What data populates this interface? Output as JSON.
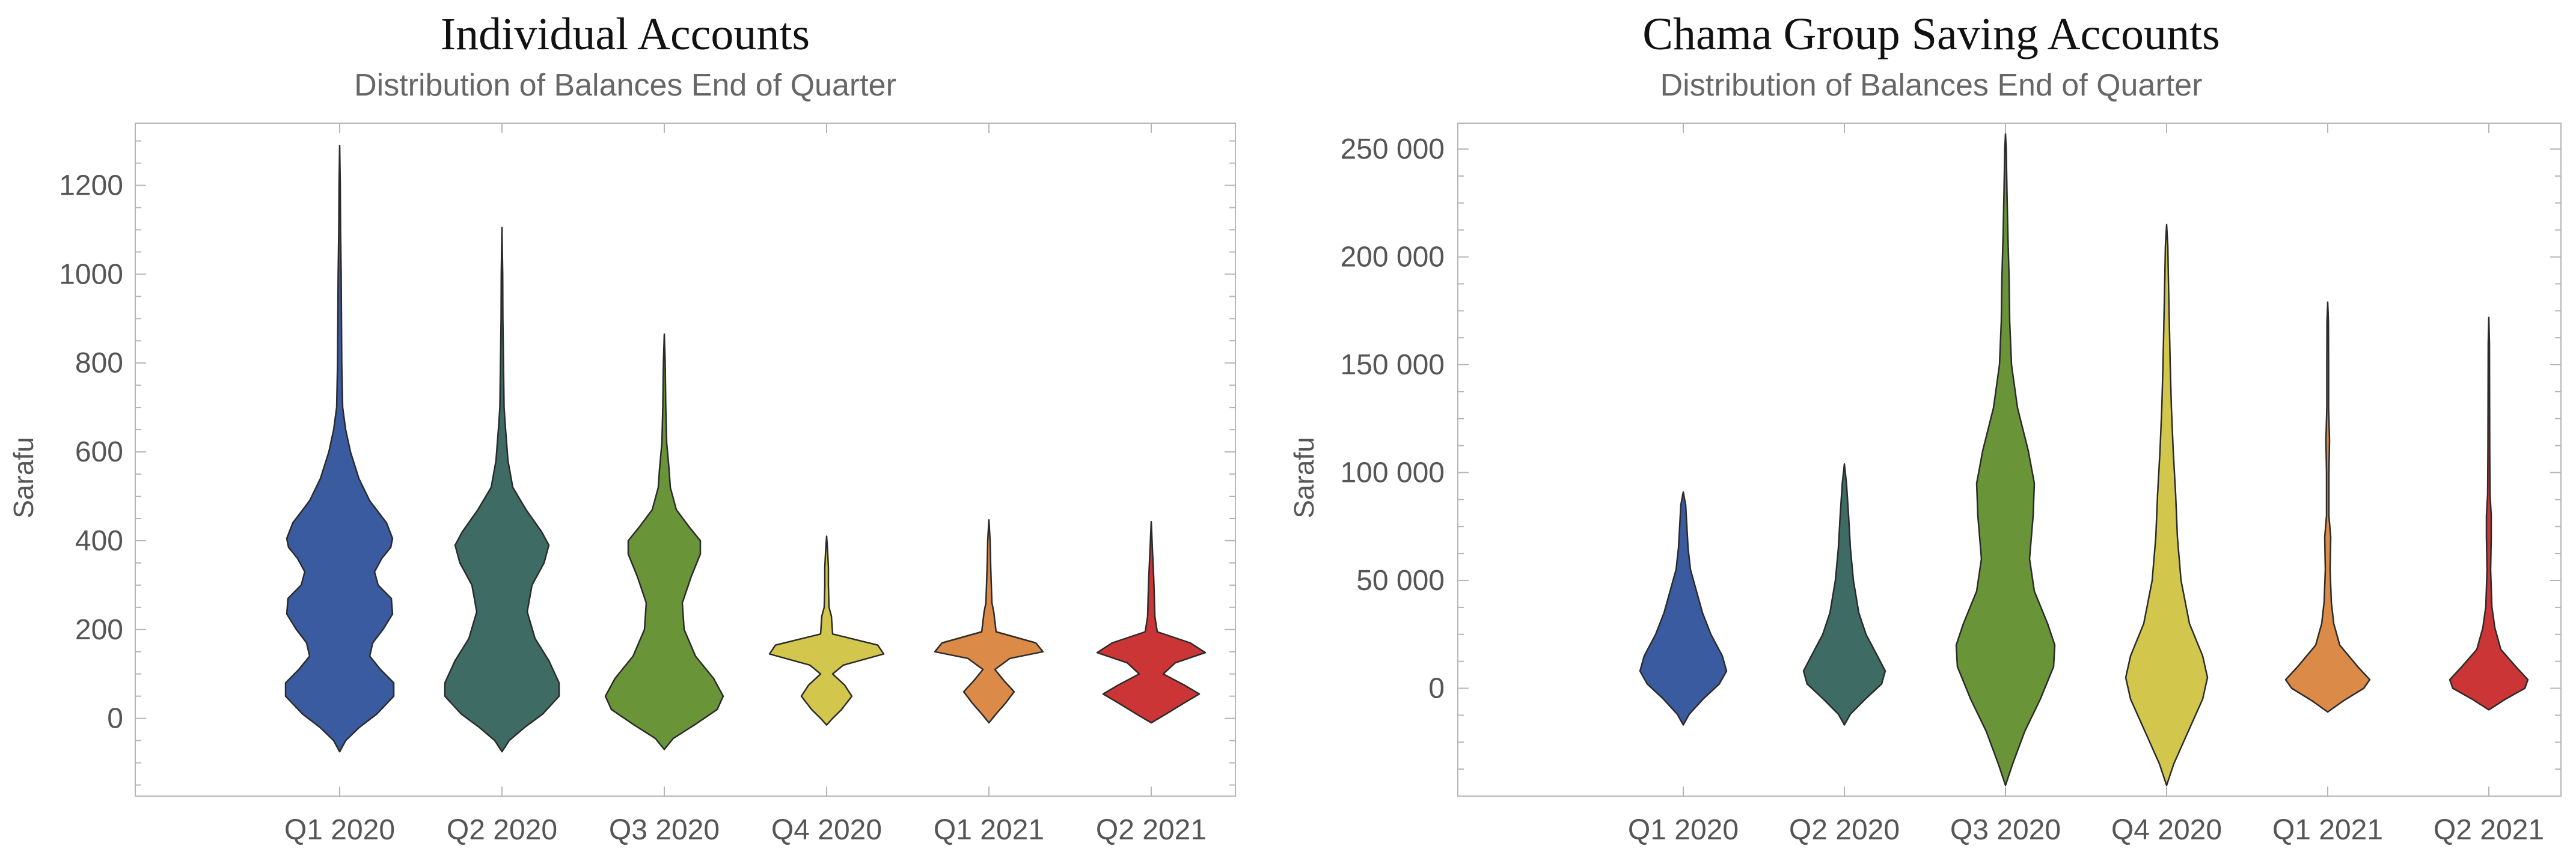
{
  "chart_data": [
    {
      "type": "violin",
      "heading": "Individual Accounts",
      "title": "Distribution of Balances End of Quarter",
      "xlabel": "",
      "ylabel": "Sarafu",
      "ylim": [
        -175,
        1340
      ],
      "yticks": [
        0,
        200,
        400,
        600,
        800,
        1000,
        1200
      ],
      "ytick_labels": [
        "0",
        "200",
        "400",
        "600",
        "800",
        "1000",
        "1200"
      ],
      "grid": false,
      "categories": [
        "Q1 2020",
        "Q2 2020",
        "Q3 2020",
        "Q4 2020",
        "Q1 2021",
        "Q2 2021"
      ],
      "colors": [
        "#3b5ba0",
        "#3e6b64",
        "#6a9438",
        "#d2c64c",
        "#db8a48",
        "#cc3535"
      ],
      "series": [
        {
          "name": "Q1 2020",
          "profile": [
            [
              -75,
              0
            ],
            [
              -50,
              0.1
            ],
            [
              -20,
              0.33
            ],
            [
              10,
              0.62
            ],
            [
              50,
              0.9
            ],
            [
              80,
              0.9
            ],
            [
              110,
              0.68
            ],
            [
              140,
              0.5
            ],
            [
              170,
              0.55
            ],
            [
              200,
              0.72
            ],
            [
              235,
              0.88
            ],
            [
              270,
              0.86
            ],
            [
              300,
              0.64
            ],
            [
              330,
              0.58
            ],
            [
              360,
              0.7
            ],
            [
              385,
              0.85
            ],
            [
              405,
              0.88
            ],
            [
              440,
              0.78
            ],
            [
              490,
              0.5
            ],
            [
              540,
              0.32
            ],
            [
              600,
              0.18
            ],
            [
              650,
              0.1
            ],
            [
              700,
              0.05
            ],
            [
              800,
              0.035
            ],
            [
              1000,
              0.025
            ],
            [
              1100,
              0.015
            ],
            [
              1200,
              0.01
            ],
            [
              1290,
              0
            ]
          ]
        },
        {
          "name": "Q2 2020",
          "profile": [
            [
              -75,
              0
            ],
            [
              -50,
              0.12
            ],
            [
              -20,
              0.38
            ],
            [
              10,
              0.68
            ],
            [
              50,
              0.95
            ],
            [
              80,
              0.95
            ],
            [
              130,
              0.78
            ],
            [
              180,
              0.55
            ],
            [
              240,
              0.42
            ],
            [
              300,
              0.5
            ],
            [
              350,
              0.7
            ],
            [
              390,
              0.78
            ],
            [
              420,
              0.66
            ],
            [
              470,
              0.4
            ],
            [
              520,
              0.18
            ],
            [
              580,
              0.1
            ],
            [
              650,
              0.06
            ],
            [
              700,
              0.035
            ],
            [
              800,
              0.025
            ],
            [
              900,
              0.015
            ],
            [
              1000,
              0.012
            ],
            [
              1105,
              0
            ]
          ]
        },
        {
          "name": "Q3 2020",
          "profile": [
            [
              -70,
              0
            ],
            [
              -45,
              0.15
            ],
            [
              -15,
              0.5
            ],
            [
              20,
              0.88
            ],
            [
              50,
              0.98
            ],
            [
              90,
              0.82
            ],
            [
              140,
              0.52
            ],
            [
              200,
              0.33
            ],
            [
              260,
              0.3
            ],
            [
              320,
              0.45
            ],
            [
              370,
              0.6
            ],
            [
              400,
              0.6
            ],
            [
              430,
              0.42
            ],
            [
              470,
              0.2
            ],
            [
              520,
              0.1
            ],
            [
              560,
              0.08
            ],
            [
              620,
              0.04
            ],
            [
              700,
              0.025
            ],
            [
              800,
              0.015
            ],
            [
              865,
              0
            ]
          ]
        },
        {
          "name": "Q4 2020",
          "profile": [
            [
              -15,
              0
            ],
            [
              0,
              0.1
            ],
            [
              20,
              0.25
            ],
            [
              50,
              0.42
            ],
            [
              75,
              0.3
            ],
            [
              100,
              0.1
            ],
            [
              120,
              0.28
            ],
            [
              145,
              0.95
            ],
            [
              165,
              0.85
            ],
            [
              190,
              0.1
            ],
            [
              230,
              0.08
            ],
            [
              250,
              0.04
            ],
            [
              300,
              0.03
            ],
            [
              340,
              0.03
            ],
            [
              380,
              0.015
            ],
            [
              410,
              0
            ]
          ]
        },
        {
          "name": "Q1 2021",
          "profile": [
            [
              -10,
              0
            ],
            [
              10,
              0.12
            ],
            [
              35,
              0.28
            ],
            [
              60,
              0.42
            ],
            [
              85,
              0.25
            ],
            [
              110,
              0.1
            ],
            [
              135,
              0.35
            ],
            [
              150,
              0.9
            ],
            [
              170,
              0.78
            ],
            [
              195,
              0.12
            ],
            [
              240,
              0.08
            ],
            [
              260,
              0.05
            ],
            [
              300,
              0.04
            ],
            [
              340,
              0.03
            ],
            [
              400,
              0.02
            ],
            [
              447,
              0
            ]
          ]
        },
        {
          "name": "Q2 2021",
          "profile": [
            [
              -10,
              0
            ],
            [
              10,
              0.25
            ],
            [
              35,
              0.55
            ],
            [
              55,
              0.8
            ],
            [
              75,
              0.55
            ],
            [
              100,
              0.2
            ],
            [
              125,
              0.4
            ],
            [
              148,
              0.9
            ],
            [
              170,
              0.65
            ],
            [
              195,
              0.1
            ],
            [
              230,
              0.06
            ],
            [
              280,
              0.05
            ],
            [
              320,
              0.04
            ],
            [
              380,
              0.02
            ],
            [
              443,
              0
            ]
          ]
        }
      ]
    },
    {
      "type": "violin",
      "heading": "Chama Group Saving Accounts",
      "title": "Distribution of Balances End of Quarter",
      "xlabel": "",
      "ylabel": "Sarafu",
      "ylim": [
        -50000,
        262000
      ],
      "yticks": [
        0,
        50000,
        100000,
        150000,
        200000,
        250000
      ],
      "ytick_labels": [
        "0",
        "50 000",
        "100 000",
        "150 000",
        "200 000",
        "250 000"
      ],
      "grid": false,
      "categories": [
        "Q1 2020",
        "Q2 2020",
        "Q3 2020",
        "Q4 2020",
        "Q1 2021",
        "Q2 2021"
      ],
      "colors": [
        "#3b5ba0",
        "#3e6b64",
        "#6a9438",
        "#d2c64c",
        "#db8a48",
        "#cc3535"
      ],
      "series": [
        {
          "name": "Q1 2020",
          "profile": [
            [
              -17000,
              0
            ],
            [
              -12000,
              0.1
            ],
            [
              -5000,
              0.33
            ],
            [
              2000,
              0.6
            ],
            [
              8000,
              0.72
            ],
            [
              15000,
              0.65
            ],
            [
              25000,
              0.46
            ],
            [
              35000,
              0.32
            ],
            [
              45000,
              0.22
            ],
            [
              55000,
              0.12
            ],
            [
              65000,
              0.08
            ],
            [
              75000,
              0.06
            ],
            [
              85000,
              0.04
            ],
            [
              91000,
              0
            ]
          ]
        },
        {
          "name": "Q2 2020",
          "profile": [
            [
              -17000,
              0
            ],
            [
              -12000,
              0.1
            ],
            [
              -5000,
              0.35
            ],
            [
              2000,
              0.62
            ],
            [
              8000,
              0.68
            ],
            [
              15000,
              0.55
            ],
            [
              25000,
              0.36
            ],
            [
              35000,
              0.24
            ],
            [
              50000,
              0.15
            ],
            [
              65000,
              0.1
            ],
            [
              80000,
              0.07
            ],
            [
              95000,
              0.035
            ],
            [
              104000,
              0
            ]
          ]
        },
        {
          "name": "Q3 2020",
          "profile": [
            [
              -45000,
              0
            ],
            [
              -35000,
              0.12
            ],
            [
              -20000,
              0.32
            ],
            [
              -5000,
              0.58
            ],
            [
              10000,
              0.8
            ],
            [
              20000,
              0.82
            ],
            [
              30000,
              0.7
            ],
            [
              45000,
              0.48
            ],
            [
              60000,
              0.4
            ],
            [
              80000,
              0.46
            ],
            [
              95000,
              0.48
            ],
            [
              110000,
              0.38
            ],
            [
              130000,
              0.2
            ],
            [
              150000,
              0.1
            ],
            [
              170000,
              0.07
            ],
            [
              190000,
              0.06
            ],
            [
              210000,
              0.04
            ],
            [
              230000,
              0.025
            ],
            [
              250000,
              0.012
            ],
            [
              257000,
              0
            ]
          ]
        },
        {
          "name": "Q4 2020",
          "profile": [
            [
              -45000,
              0
            ],
            [
              -35000,
              0.12
            ],
            [
              -20000,
              0.36
            ],
            [
              -5000,
              0.6
            ],
            [
              5000,
              0.68
            ],
            [
              15000,
              0.6
            ],
            [
              30000,
              0.38
            ],
            [
              50000,
              0.24
            ],
            [
              70000,
              0.18
            ],
            [
              90000,
              0.15
            ],
            [
              110000,
              0.11
            ],
            [
              130000,
              0.08
            ],
            [
              150000,
              0.06
            ],
            [
              170000,
              0.045
            ],
            [
              190000,
              0.03
            ],
            [
              205000,
              0.02
            ],
            [
              215000,
              0
            ]
          ]
        },
        {
          "name": "Q1 2021",
          "profile": [
            [
              -11000,
              0
            ],
            [
              -6000,
              0.25
            ],
            [
              0,
              0.6
            ],
            [
              4000,
              0.7
            ],
            [
              10000,
              0.5
            ],
            [
              20000,
              0.2
            ],
            [
              30000,
              0.1
            ],
            [
              40000,
              0.06
            ],
            [
              55000,
              0.04
            ],
            [
              70000,
              0.05
            ],
            [
              80000,
              0.02
            ],
            [
              100000,
              0.02
            ],
            [
              115000,
              0.03
            ],
            [
              130000,
              0.015
            ],
            [
              150000,
              0.015
            ],
            [
              170000,
              0.012
            ],
            [
              179000,
              0
            ]
          ]
        },
        {
          "name": "Q2 2021",
          "profile": [
            [
              -10000,
              0
            ],
            [
              -5000,
              0.28
            ],
            [
              0,
              0.6
            ],
            [
              4000,
              0.65
            ],
            [
              10000,
              0.45
            ],
            [
              18000,
              0.2
            ],
            [
              28000,
              0.1
            ],
            [
              38000,
              0.05
            ],
            [
              55000,
              0.03
            ],
            [
              70000,
              0.04
            ],
            [
              80000,
              0.04
            ],
            [
              90000,
              0.02
            ],
            [
              110000,
              0.015
            ],
            [
              140000,
              0.012
            ],
            [
              160000,
              0.01
            ],
            [
              172000,
              0
            ]
          ]
        }
      ]
    }
  ]
}
